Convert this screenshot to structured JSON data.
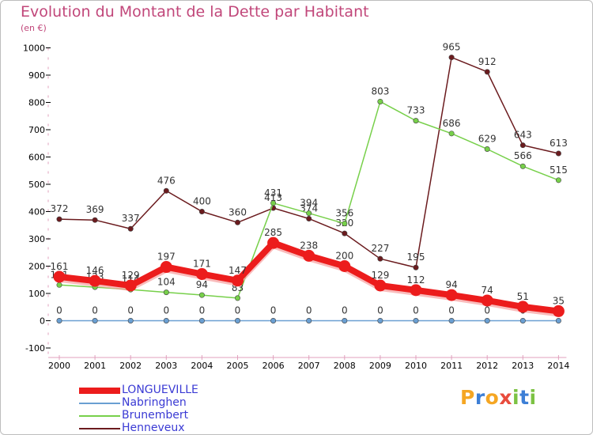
{
  "title": "Evolution du Montant de la Dette par Habitant",
  "subtitle": "(en €)",
  "brand": {
    "letters": [
      "P",
      "r",
      "o",
      "x",
      "i",
      "t",
      "i"
    ],
    "colors": [
      "#f5a623",
      "#3d7fd6",
      "#f5a623",
      "#e84c3d",
      "#7cc243",
      "#3d7fd6",
      "#7cc243"
    ]
  },
  "chart_data": {
    "type": "line",
    "x": [
      2000,
      2001,
      2002,
      2003,
      2004,
      2005,
      2006,
      2007,
      2008,
      2009,
      2010,
      2011,
      2012,
      2013,
      2014
    ],
    "ylim": [
      -100,
      1000
    ],
    "yticks": [
      -100,
      0,
      100,
      200,
      300,
      400,
      500,
      600,
      700,
      800,
      900,
      1000
    ],
    "grid": false,
    "legend_position": "bottom-left",
    "series": [
      {
        "name": "Henneveux",
        "color": "#6b1b1e",
        "values": [
          372,
          369,
          337,
          476,
          400,
          360,
          413,
          374,
          320,
          227,
          195,
          965,
          912,
          643,
          613
        ]
      },
      {
        "name": "Brunembert",
        "color": "#77d04a",
        "values": [
          131,
          123,
          114,
          104,
          94,
          83,
          431,
          394,
          356,
          803,
          733,
          686,
          629,
          566,
          515
        ]
      },
      {
        "name": "Nabringhen",
        "color": "#6a9fd2",
        "values": [
          0,
          0,
          0,
          0,
          0,
          0,
          0,
          0,
          0,
          0,
          0,
          0,
          0,
          0,
          0
        ]
      },
      {
        "name": "LONGUEVILLE",
        "color": "#ec1c1c",
        "values": [
          161,
          146,
          129,
          197,
          171,
          147,
          285,
          238,
          200,
          129,
          112,
          94,
          74,
          51,
          35
        ]
      }
    ],
    "legend_order": [
      "LONGUEVILLE",
      "Nabringhen",
      "Brunembert",
      "Henneveux"
    ]
  }
}
